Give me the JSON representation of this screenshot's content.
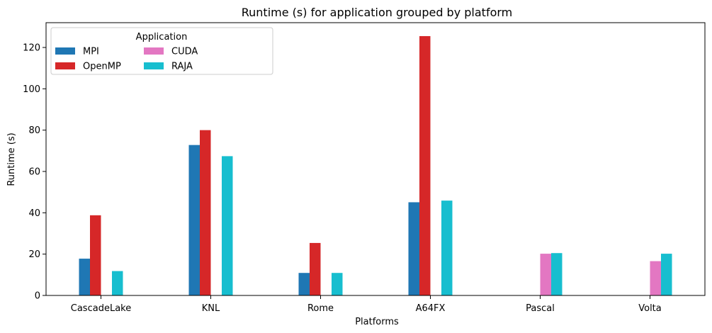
{
  "chart_data": {
    "type": "bar",
    "title": "Runtime (s) for application grouped by platform",
    "xlabel": "Platforms",
    "ylabel": "Runtime (s)",
    "ylim": [
      0,
      132
    ],
    "yticks": [
      0,
      20,
      40,
      60,
      80,
      100,
      120
    ],
    "grid": false,
    "categories": [
      "CascadeLake",
      "KNL",
      "Rome",
      "A64FX",
      "Pascal",
      "Volta"
    ],
    "series": [
      {
        "name": "MPI",
        "color": "#1f77b4",
        "values": [
          17.8,
          72.8,
          10.9,
          45.1,
          null,
          null
        ]
      },
      {
        "name": "OpenMP",
        "color": "#d62728",
        "values": [
          38.8,
          80.0,
          25.4,
          125.5,
          null,
          null
        ]
      },
      {
        "name": "CUDA",
        "color": "#e377c2",
        "values": [
          null,
          null,
          null,
          null,
          20.2,
          16.6
        ]
      },
      {
        "name": "RAJA",
        "color": "#17becf",
        "values": [
          11.8,
          67.4,
          10.9,
          45.9,
          20.5,
          20.2
        ]
      }
    ],
    "legend": {
      "title": "Application",
      "placement": "top-left",
      "columns": 3,
      "order": [
        "MPI",
        "OpenMP",
        "CUDA",
        "RAJA"
      ]
    }
  }
}
